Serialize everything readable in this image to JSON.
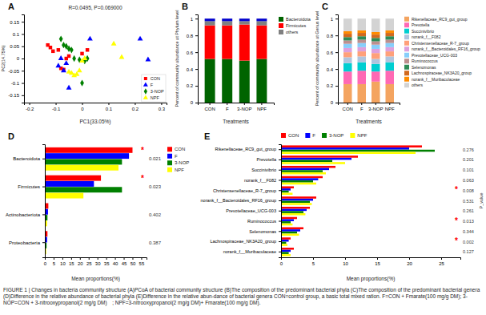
{
  "chart_data": [
    {
      "type": "scatter",
      "title": "A",
      "subtitle": "R=0.0495, P=0.069000",
      "xlabel": "PC1(33.05%)",
      "ylabel": "PC2(14.75%)",
      "series": [
        {
          "name": "CON",
          "color": "red",
          "marker": "square",
          "x": [
            -0.13,
            -0.12,
            -0.11,
            -0.09,
            -0.08,
            -0.07,
            -0.06,
            0.0,
            0.02,
            -0.05
          ],
          "values": [
            0.055,
            0.045,
            0.03,
            0.035,
            -0.04,
            -0.045,
            0.0,
            0.02,
            0.035,
            0.01
          ]
        },
        {
          "name": "F",
          "color": "blue",
          "marker": "triangle",
          "x": [
            -0.09,
            -0.08,
            -0.07,
            -0.06,
            -0.05,
            0.03,
            0.22,
            0.25
          ],
          "values": [
            -0.03,
            0.0,
            -0.05,
            -0.02,
            -0.12,
            0.08,
            0.08,
            -0.005
          ]
        },
        {
          "name": "3-NOP",
          "color": "green",
          "marker": "diamond",
          "x": [
            -0.08,
            -0.07,
            -0.06,
            -0.05,
            -0.04,
            -0.03,
            -0.01,
            0.0,
            0.01,
            0.02
          ],
          "values": [
            0.08,
            0.055,
            0.05,
            0.04,
            0.035,
            0.0,
            -0.005,
            -0.1,
            -0.01,
            0.0
          ]
        },
        {
          "name": "NPF",
          "color": "yellow",
          "marker": "triangle",
          "x": [
            -0.05,
            -0.04,
            -0.03,
            -0.02,
            -0.01,
            0.0,
            0.01,
            0.12,
            0.15
          ],
          "values": [
            -0.055,
            -0.06,
            -0.07,
            -0.065,
            -0.05,
            -0.01,
            0.0,
            0.06,
            0.005
          ]
        }
      ],
      "xlim": [
        -0.22,
        0.32
      ],
      "xticks": [
        -0.2,
        -0.1,
        0,
        0.1,
        0.2,
        0.3
      ],
      "ylim": [
        -0.18,
        0.18
      ],
      "yticks": [
        -0.15,
        -0.1,
        -0.05,
        0,
        0.05,
        0.1,
        0.15
      ],
      "grid": false,
      "legend": "lower right"
    },
    {
      "type": "bar",
      "stacked": true,
      "title": "B",
      "xlabel": "Treatments",
      "ylabel": "Percent of community abundance at Phylum level",
      "categories": [
        "CON",
        "F",
        "3-NOP",
        "NPF"
      ],
      "series": [
        {
          "name": "Bacteroidota",
          "color": "#006400",
          "values": [
            0.52,
            0.52,
            0.5,
            0.52
          ]
        },
        {
          "name": "Firmicutes",
          "color": "#ff0000",
          "values": [
            0.4,
            0.4,
            0.43,
            0.4
          ]
        },
        {
          "name": "others",
          "color": "#808080",
          "values": [
            0.05,
            0.05,
            0.04,
            0.05
          ]
        },
        {
          "color": "#0000cd",
          "values": [
            0.03,
            0.03,
            0.03,
            0.03
          ]
        }
      ],
      "ylim": [
        0,
        1.05
      ],
      "yticks": [
        0,
        0.2,
        0.4,
        0.6,
        0.8,
        1
      ],
      "grid": false,
      "legend": "right"
    },
    {
      "type": "bar",
      "stacked": true,
      "title": "C",
      "xlabel": "Treatments",
      "ylabel": "Percent of community abundance at Genus level",
      "categories": [
        "CON",
        "F",
        "3-NOP",
        "NPF"
      ],
      "series": [
        {
          "name": "Rikenellaceae_RC9_gut_group",
          "color": "#f4a460",
          "values": [
            0.22,
            0.22,
            0.25,
            0.22
          ]
        },
        {
          "name": "Prevotella",
          "color": "#ff69b4",
          "values": [
            0.15,
            0.16,
            0.12,
            0.16
          ]
        },
        {
          "name": "Succinivibrio",
          "color": "#00ced1",
          "values": [
            0.1,
            0.1,
            0.09,
            0.1
          ]
        },
        {
          "name": "norank_f__F082",
          "color": "#b0c4de",
          "values": [
            0.07,
            0.07,
            0.06,
            0.07
          ]
        },
        {
          "name": "Christensenellaceae_R-7_group",
          "color": "#ffa07a",
          "values": [
            0.06,
            0.06,
            0.07,
            0.06
          ]
        },
        {
          "name": "norank_f__Bacteroidales_RF16_group",
          "color": "#dda0dd",
          "values": [
            0.05,
            0.05,
            0.05,
            0.05
          ]
        },
        {
          "name": "Prevotellaceae_UCG-003",
          "color": "#87cefa",
          "values": [
            0.05,
            0.05,
            0.05,
            0.05
          ]
        },
        {
          "name": "Ruminococcus",
          "color": "#bc8f8f",
          "values": [
            0.04,
            0.04,
            0.04,
            0.04
          ]
        },
        {
          "name": "Selenomonas",
          "color": "#2e8b57",
          "values": [
            0.04,
            0.04,
            0.04,
            0.04
          ]
        },
        {
          "name": "Lachnospiraceae_NK3A20_group",
          "color": "#d2691e",
          "values": [
            0.04,
            0.04,
            0.04,
            0.04
          ]
        },
        {
          "name": "norank_f__Muribaculaceae",
          "color": "#ff8c00",
          "values": [
            0.03,
            0.03,
            0.03,
            0.03
          ]
        },
        {
          "name": "others",
          "color": "#d3d3d3",
          "values": [
            0.15,
            0.14,
            0.16,
            0.14
          ]
        }
      ],
      "ylim": [
        0,
        1.05
      ],
      "yticks": [
        0,
        0.2,
        0.4,
        0.6,
        0.8,
        1
      ],
      "grid": false,
      "legend": "right"
    },
    {
      "type": "bar",
      "orientation": "horizontal",
      "title": "D",
      "xlabel": "Mean proportions(%)",
      "categories": [
        "Bacteroidota",
        "Firmicutes",
        "Actinobacteriota",
        "Proteobacteria"
      ],
      "series": [
        {
          "name": "CON",
          "color": "red",
          "values": [
            50,
            32,
            2.0,
            1.5
          ]
        },
        {
          "name": "F",
          "color": "blue",
          "values": [
            48,
            28,
            1.8,
            1.3
          ]
        },
        {
          "name": "3-NOP",
          "color": "green",
          "values": [
            44,
            44,
            1.5,
            1.0
          ]
        },
        {
          "name": "NPF",
          "color": "yellow",
          "values": [
            42,
            22,
            1.3,
            0.8
          ]
        }
      ],
      "xlim": [
        0,
        58
      ],
      "xticks": [
        0,
        5,
        10,
        15,
        20,
        25,
        30,
        35,
        40,
        45,
        50,
        55
      ],
      "p_values": [
        "0.021",
        "0.023",
        "0.402",
        "0.387"
      ],
      "annotations": [
        {
          "text": "*",
          "category": "Bacteroidota",
          "color": "red"
        },
        {
          "text": "*",
          "category": "Firmicutes",
          "color": "red"
        }
      ],
      "grid": false,
      "legend": "right"
    },
    {
      "type": "bar",
      "orientation": "horizontal",
      "title": "E",
      "xlabel": "Mean proportions(%)",
      "categories": [
        "Rikenellaceae_RC9_gut_group",
        "Prevotella",
        "Succinivibrio",
        "norank_f__F082",
        "Christensenellaceae_R-7_group",
        "norank_f__Bacteroidales_RF16_group",
        "Prevotellaceae_UCG-003",
        "Ruminococcus",
        "Selenomonas",
        "Lachnospiraceae_NK3A20_group",
        "norank_f__Muribaculaceae"
      ],
      "series": [
        {
          "name": "CON",
          "color": "red",
          "values": [
            22,
            12,
            8.5,
            6.5,
            2.0,
            5.5,
            4.5,
            2.5,
            3.5,
            1.5,
            2.0
          ]
        },
        {
          "name": "F",
          "color": "blue",
          "values": [
            20,
            11,
            7.5,
            5.8,
            1.5,
            5.0,
            4.0,
            2.0,
            3.0,
            1.2,
            1.5
          ]
        },
        {
          "name": "3-NOP",
          "color": "green",
          "values": [
            24,
            8,
            6.5,
            5.0,
            1.2,
            4.5,
            3.5,
            1.5,
            2.5,
            0.8,
            1.2
          ]
        },
        {
          "name": "NPF",
          "color": "yellow",
          "values": [
            21,
            10,
            7.0,
            5.5,
            1.8,
            4.8,
            3.8,
            1.8,
            2.8,
            1.0,
            1.5
          ]
        }
      ],
      "xlim": [
        0,
        28
      ],
      "xticks": [
        0,
        5,
        10,
        15,
        20,
        25
      ],
      "p_values": [
        "0.276",
        "0.201",
        "0.101",
        "0.063",
        "0.008",
        "0.531",
        "0.261",
        "0.013",
        "0.344",
        "0.002",
        "0.127"
      ],
      "annotations": [
        {
          "text": "*",
          "category": "Christensenellaceae_R-7_group",
          "color": "red"
        },
        {
          "text": "*",
          "category": "Ruminococcus",
          "color": "red"
        },
        {
          "text": "*",
          "category": "Lachnospiraceae_NK3A20_group",
          "color": "red"
        },
        {
          "text": "P_value"
        }
      ],
      "grid": false,
      "legend": "top"
    }
  ],
  "caption": "FIGURE 1 | Changes in bacteria community structure (A)PCoA of bacterial community structure (B)The composition of the predominant bacterial phyla (C)The composition of the predominant bacterial genera (D)Difference in the relative abundance of bacterial phyla (E)Difference in the relative abun-dance of bacterial genera CON=control group, a basic total mixed ration. F=CON + Fmarate(100 mg/g DM); 3-NOP=CON + 3-nitrooxypropanol(2 mg/g DM) ; NPF=3-nitrooxypropanol(2 mg/g DM)+ Fmarate(100 mg/g DM)."
}
